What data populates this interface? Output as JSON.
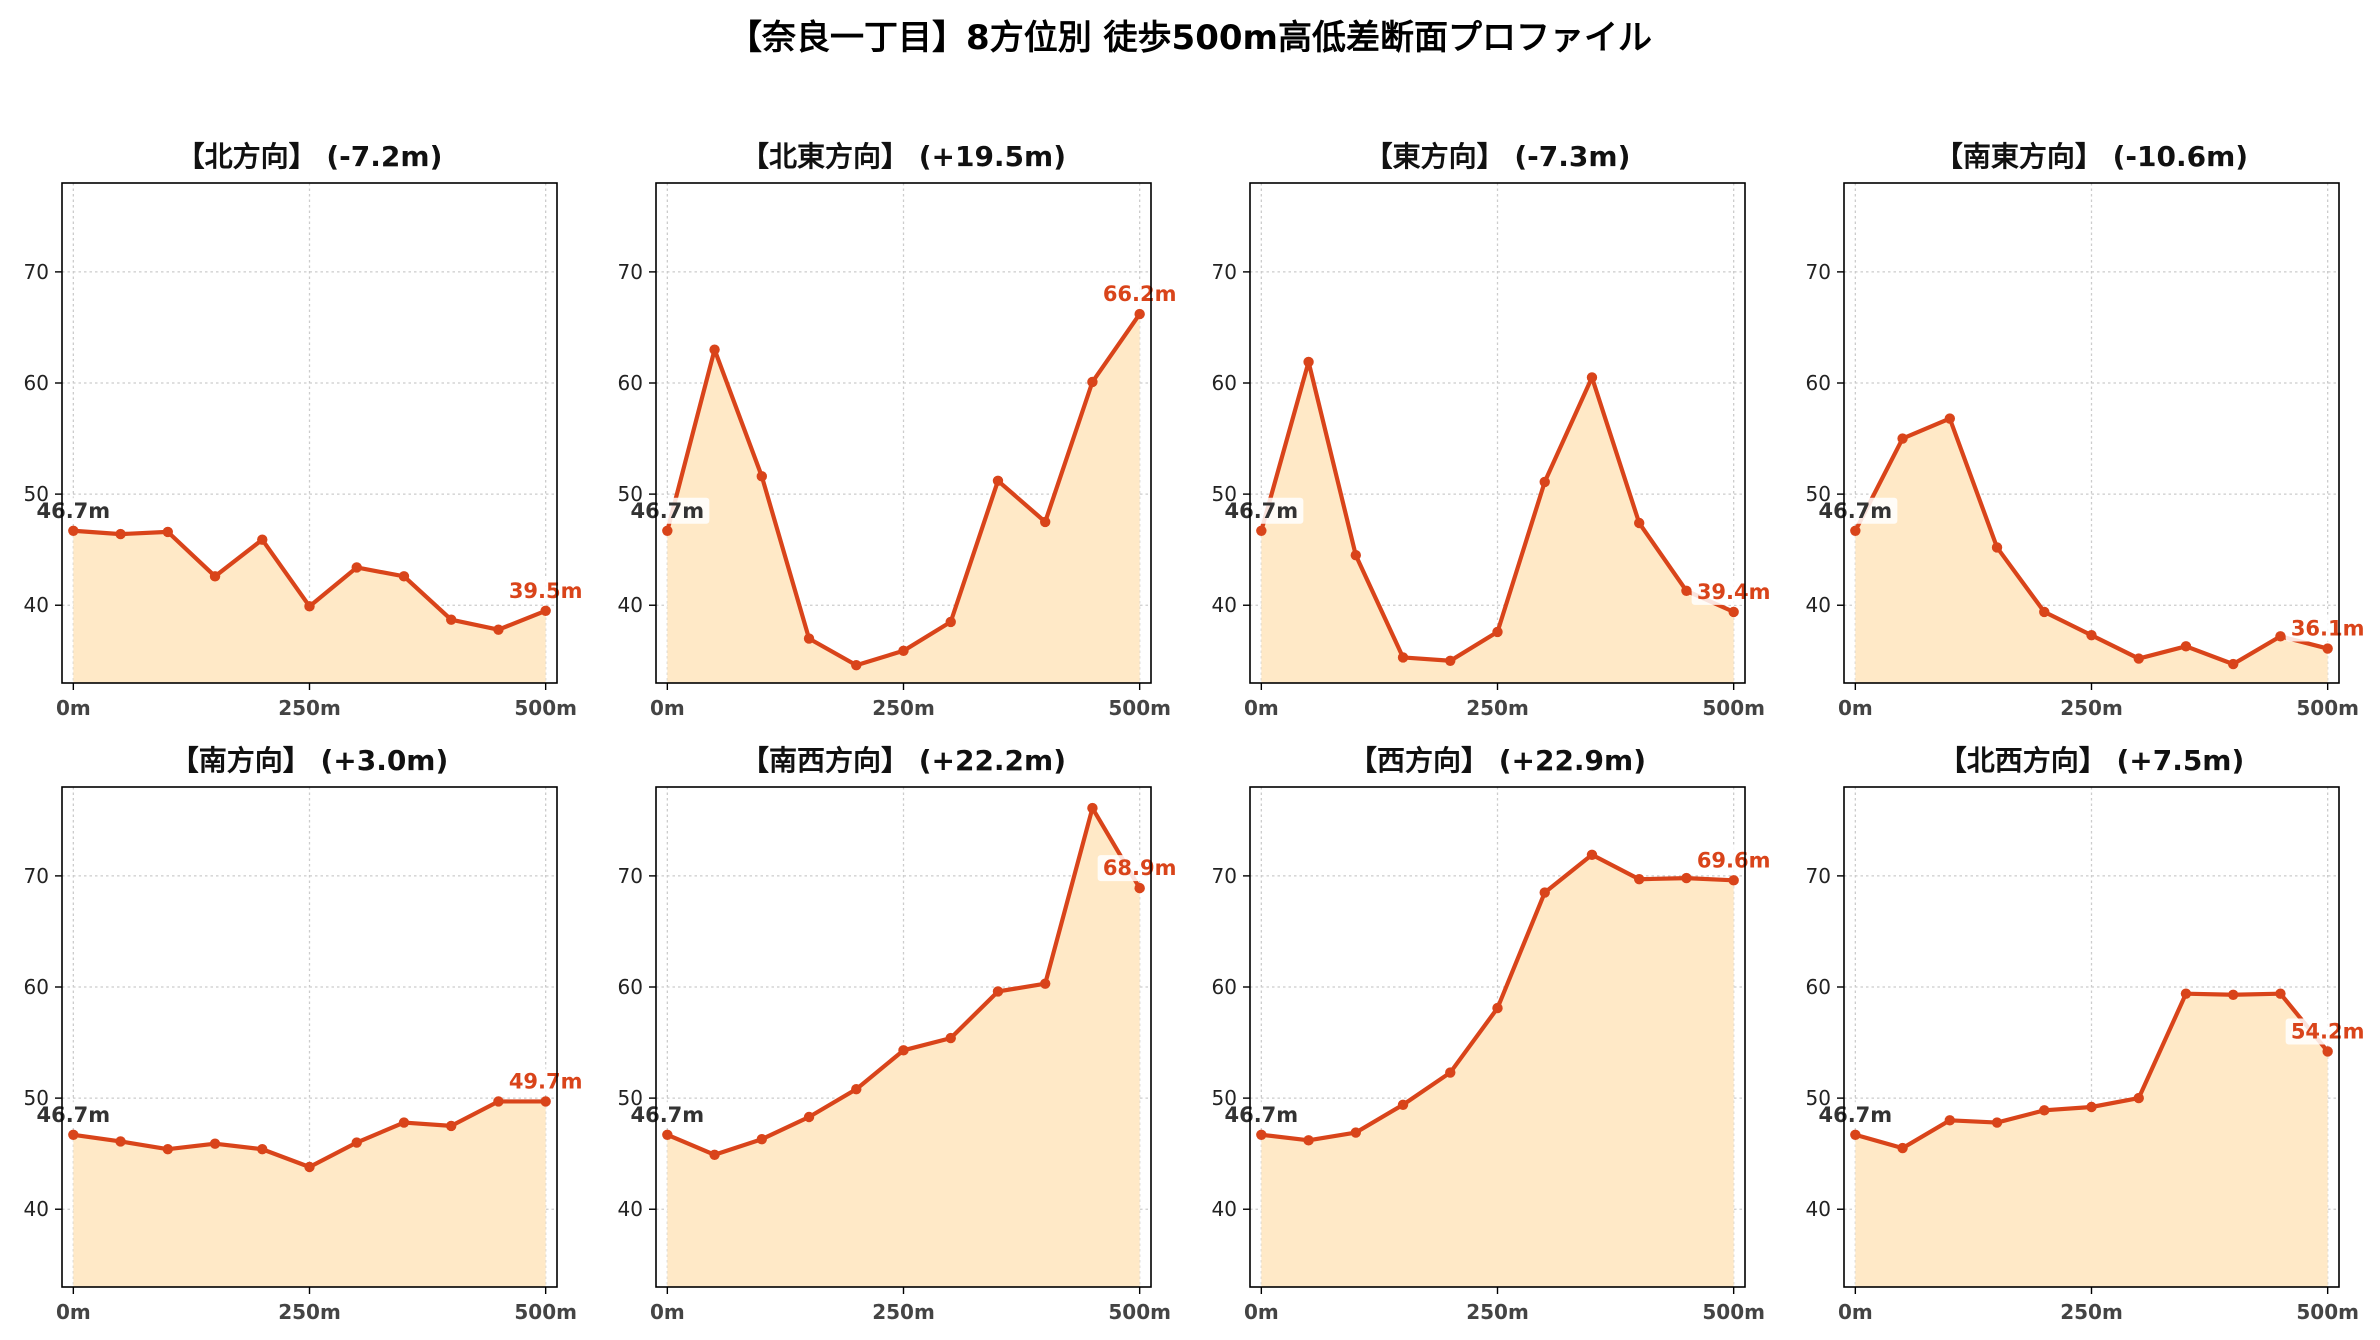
{
  "title": "【奈良一丁目】8方位別 徒歩500m高低差断面プロファイル",
  "colors": {
    "line": "#d9441a",
    "fill": "#ffe9c7",
    "start_label": "#333333",
    "end_label": "#d9441a",
    "grid": "#cccccc"
  },
  "chart_data": [
    {
      "type": "area",
      "title": "【北方向】 (-7.2m)",
      "x": [
        0,
        50,
        100,
        150,
        200,
        250,
        300,
        350,
        400,
        450,
        500
      ],
      "series": [
        {
          "values": [
            46.7,
            46.4,
            46.6,
            42.6,
            45.9,
            39.9,
            43.4,
            42.6,
            38.7,
            37.8,
            39.5
          ]
        }
      ],
      "start_label": "46.7m",
      "end_label": "39.5m",
      "xticks": [
        "0m",
        "250m",
        "500m"
      ],
      "yticks": [
        "40",
        "50",
        "60",
        "70"
      ],
      "ylim": [
        33,
        78
      ],
      "xlim": [
        -12,
        512
      ],
      "grid": true
    },
    {
      "type": "area",
      "title": "【北東方向】 (+19.5m)",
      "x": [
        0,
        50,
        100,
        150,
        200,
        250,
        300,
        350,
        400,
        450,
        500
      ],
      "series": [
        {
          "values": [
            46.7,
            63.0,
            51.6,
            37.0,
            34.6,
            35.9,
            38.5,
            51.2,
            47.5,
            60.1,
            66.2
          ]
        }
      ],
      "start_label": "46.7m",
      "end_label": "66.2m",
      "xticks": [
        "0m",
        "250m",
        "500m"
      ],
      "yticks": [
        "40",
        "50",
        "60",
        "70"
      ],
      "ylim": [
        33,
        78
      ],
      "xlim": [
        -12,
        512
      ],
      "grid": true
    },
    {
      "type": "area",
      "title": "【東方向】 (-7.3m)",
      "x": [
        0,
        50,
        100,
        150,
        200,
        250,
        300,
        350,
        400,
        450,
        500
      ],
      "series": [
        {
          "values": [
            46.7,
            61.9,
            44.5,
            35.3,
            35.0,
            37.6,
            51.1,
            60.5,
            47.4,
            41.3,
            39.4
          ]
        }
      ],
      "start_label": "46.7m",
      "end_label": "39.4m",
      "xticks": [
        "0m",
        "250m",
        "500m"
      ],
      "yticks": [
        "40",
        "50",
        "60",
        "70"
      ],
      "ylim": [
        33,
        78
      ],
      "xlim": [
        -12,
        512
      ],
      "grid": true
    },
    {
      "type": "area",
      "title": "【南東方向】 (-10.6m)",
      "x": [
        0,
        50,
        100,
        150,
        200,
        250,
        300,
        350,
        400,
        450,
        500
      ],
      "series": [
        {
          "values": [
            46.7,
            55.0,
            56.8,
            45.2,
            39.4,
            37.3,
            35.2,
            36.3,
            34.7,
            37.2,
            36.1
          ]
        }
      ],
      "start_label": "46.7m",
      "end_label": "36.1m",
      "xticks": [
        "0m",
        "250m",
        "500m"
      ],
      "yticks": [
        "40",
        "50",
        "60",
        "70"
      ],
      "ylim": [
        33,
        78
      ],
      "xlim": [
        -12,
        512
      ],
      "grid": true
    },
    {
      "type": "area",
      "title": "【南方向】 (+3.0m)",
      "x": [
        0,
        50,
        100,
        150,
        200,
        250,
        300,
        350,
        400,
        450,
        500
      ],
      "series": [
        {
          "values": [
            46.7,
            46.1,
            45.4,
            45.9,
            45.4,
            43.8,
            46.0,
            47.8,
            47.5,
            49.7,
            49.7
          ]
        }
      ],
      "start_label": "46.7m",
      "end_label": "49.7m",
      "xticks": [
        "0m",
        "250m",
        "500m"
      ],
      "yticks": [
        "40",
        "50",
        "60",
        "70"
      ],
      "ylim": [
        33,
        78
      ],
      "xlim": [
        -12,
        512
      ],
      "grid": true
    },
    {
      "type": "area",
      "title": "【南西方向】 (+22.2m)",
      "x": [
        0,
        50,
        100,
        150,
        200,
        250,
        300,
        350,
        400,
        450,
        500
      ],
      "series": [
        {
          "values": [
            46.7,
            44.9,
            46.3,
            48.3,
            50.8,
            54.3,
            55.4,
            59.6,
            60.3,
            76.1,
            68.9
          ]
        }
      ],
      "start_label": "46.7m",
      "end_label": "68.9m",
      "xticks": [
        "0m",
        "250m",
        "500m"
      ],
      "yticks": [
        "40",
        "50",
        "60",
        "70"
      ],
      "ylim": [
        33,
        78
      ],
      "xlim": [
        -12,
        512
      ],
      "grid": true
    },
    {
      "type": "area",
      "title": "【西方向】 (+22.9m)",
      "x": [
        0,
        50,
        100,
        150,
        200,
        250,
        300,
        350,
        400,
        450,
        500
      ],
      "series": [
        {
          "values": [
            46.7,
            46.2,
            46.9,
            49.4,
            52.3,
            58.1,
            68.5,
            71.9,
            69.7,
            69.8,
            69.6
          ]
        }
      ],
      "start_label": "46.7m",
      "end_label": "69.6m",
      "xticks": [
        "0m",
        "250m",
        "500m"
      ],
      "yticks": [
        "40",
        "50",
        "60",
        "70"
      ],
      "ylim": [
        33,
        78
      ],
      "xlim": [
        -12,
        512
      ],
      "grid": true
    },
    {
      "type": "area",
      "title": "【北西方向】 (+7.5m)",
      "x": [
        0,
        50,
        100,
        150,
        200,
        250,
        300,
        350,
        400,
        450,
        500
      ],
      "series": [
        {
          "values": [
            46.7,
            45.5,
            48.0,
            47.8,
            48.9,
            49.2,
            50.0,
            59.4,
            59.3,
            59.4,
            54.2
          ]
        }
      ],
      "start_label": "46.7m",
      "end_label": "54.2m",
      "xticks": [
        "0m",
        "250m",
        "500m"
      ],
      "yticks": [
        "40",
        "50",
        "60",
        "70"
      ],
      "ylim": [
        33,
        78
      ],
      "xlim": [
        -12,
        512
      ],
      "grid": true
    }
  ]
}
